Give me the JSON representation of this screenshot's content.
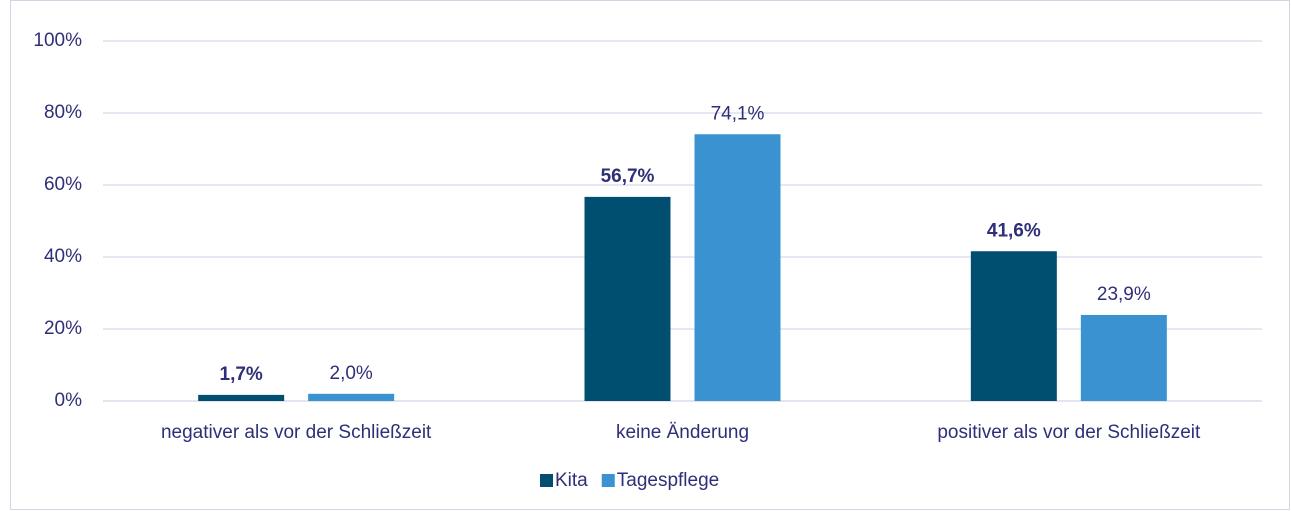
{
  "chart_data": {
    "type": "bar",
    "categories": [
      "negativer als vor der Schließzeit",
      "keine Änderung",
      "positiver als vor der Schließzeit"
    ],
    "series": [
      {
        "name": "Kita",
        "color": "#004f71",
        "values": [
          1.7,
          56.7,
          41.6
        ],
        "value_labels": [
          "1,7%",
          "56,7%",
          "41,6%"
        ]
      },
      {
        "name": "Tagespflege",
        "color": "#3a93d0",
        "values": [
          2.0,
          74.1,
          23.9
        ],
        "value_labels": [
          "2,0%",
          "74,1%",
          "23,9%"
        ]
      }
    ],
    "ylim": [
      0,
      100
    ],
    "yticks": [
      {
        "value": 0,
        "label": "0%"
      },
      {
        "value": 20,
        "label": "20%"
      },
      {
        "value": 40,
        "label": "40%"
      },
      {
        "value": 60,
        "label": "60%"
      },
      {
        "value": 80,
        "label": "80%"
      },
      {
        "value": 100,
        "label": "100%"
      }
    ],
    "grid": true,
    "legend": "bottom"
  }
}
